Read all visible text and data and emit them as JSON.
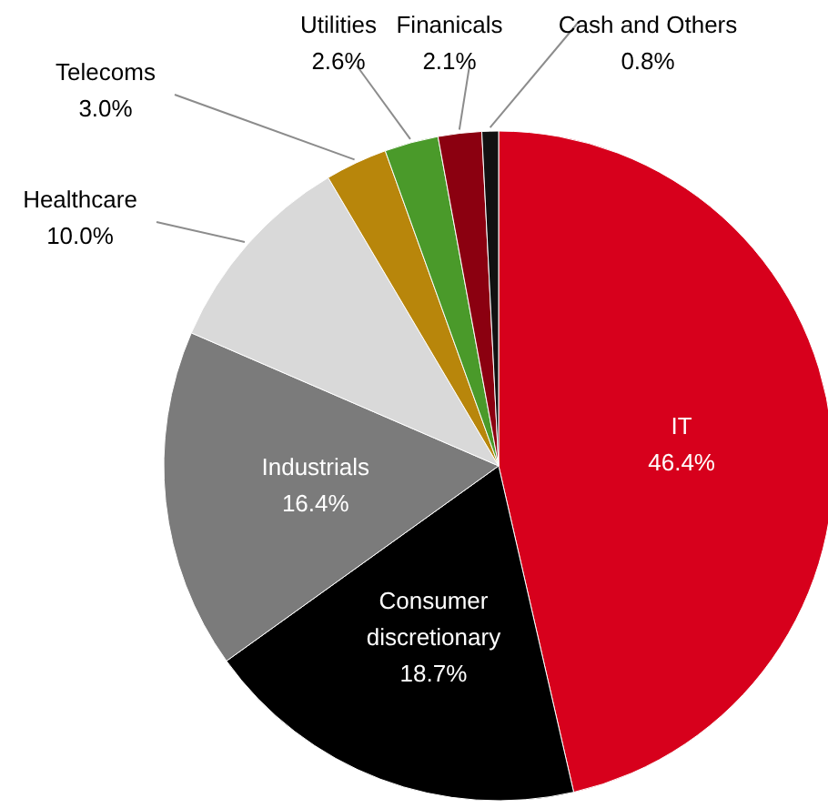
{
  "chart_data": {
    "type": "pie",
    "categories": [
      "IT",
      "Consumer discretionary",
      "Industrials",
      "Healthcare",
      "Telecoms",
      "Utilities",
      "Finanicals",
      "Cash and Others"
    ],
    "values": [
      46.4,
      18.7,
      16.4,
      10.0,
      3.0,
      2.6,
      2.1,
      0.8
    ],
    "value_labels": [
      "46.4%",
      "18.7%",
      "16.4%",
      "10.0%",
      "3.0%",
      "2.6%",
      "2.1%",
      "0.8%"
    ],
    "colors": [
      "#d7001c",
      "#000000",
      "#7b7b7b",
      "#d9d9d9",
      "#b8860b",
      "#4a9a2a",
      "#8b0010",
      "#111111"
    ]
  }
}
